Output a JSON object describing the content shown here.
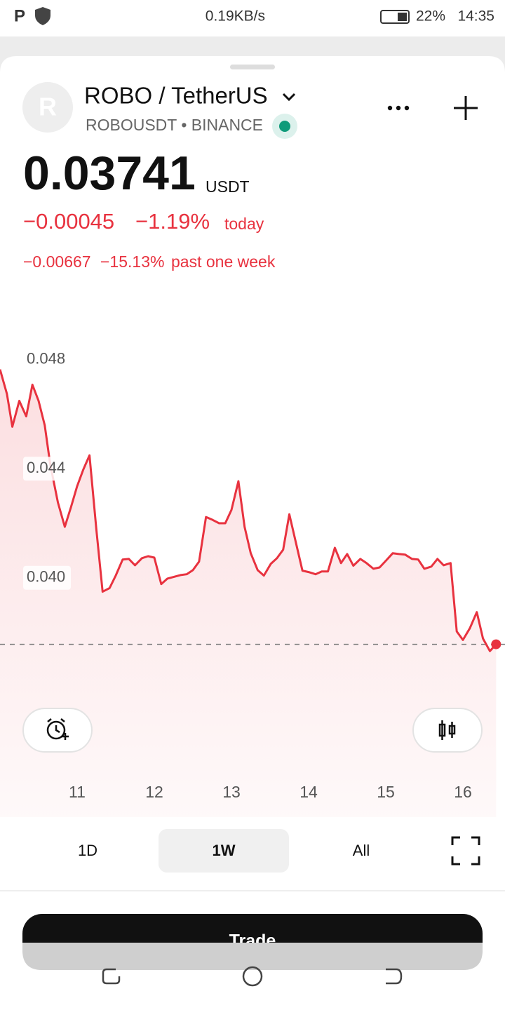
{
  "status_bar": {
    "speed": "0.19KB/s",
    "battery": "22%",
    "time": "14:35"
  },
  "header": {
    "avatar": "R",
    "title": "ROBO / TetherUS",
    "subtitle": "ROBOUSDT • BINANCE"
  },
  "price": {
    "value": "0.03741",
    "unit": "USDT",
    "change": "−0.00045",
    "change_pct": "−1.19%",
    "change_period": "today",
    "week_change": "−0.00667",
    "week_change_pct": "−15.13%",
    "week_period": "past one week"
  },
  "chart_data": {
    "type": "line",
    "color": "#e8323f",
    "grid": false,
    "xlim": [
      10,
      16.5
    ],
    "xticks": [
      11,
      12,
      13,
      14,
      15,
      16
    ],
    "ylim": [
      0.034,
      0.05
    ],
    "yticks": [
      0.048,
      0.044,
      {
        "value": 0.04,
        "label": "0.040"
      }
    ],
    "x": [
      10.0,
      10.09,
      10.16,
      10.25,
      10.34,
      10.42,
      10.5,
      10.58,
      10.65,
      10.75,
      10.84,
      10.92,
      11.0,
      11.08,
      11.16,
      11.25,
      11.33,
      11.42,
      11.5,
      11.59,
      11.67,
      11.75,
      11.84,
      11.92,
      12.0,
      12.09,
      12.17,
      12.25,
      12.34,
      12.42,
      12.5,
      12.58,
      12.67,
      12.75,
      12.84,
      12.92,
      13.0,
      13.09,
      13.17,
      13.25,
      13.34,
      13.42,
      13.51,
      13.59,
      13.67,
      13.75,
      13.84,
      13.92,
      14.0,
      14.09,
      14.17,
      14.25,
      14.34,
      14.42,
      14.5,
      14.58,
      14.67,
      14.75,
      14.84,
      14.92,
      15.0,
      15.09,
      15.17,
      15.25,
      15.34,
      15.42,
      15.5,
      15.59,
      15.67,
      15.75,
      15.84,
      15.92,
      16.0,
      16.09,
      16.18,
      16.26,
      16.35,
      16.43
    ],
    "values": [
      0.04764,
      0.04674,
      0.04554,
      0.04649,
      0.04592,
      0.04708,
      0.04649,
      0.04559,
      0.04418,
      0.04277,
      0.04187,
      0.04259,
      0.04336,
      0.04397,
      0.04449,
      0.04174,
      0.03949,
      0.03962,
      0.04008,
      0.04067,
      0.04069,
      0.04046,
      0.04072,
      0.04079,
      0.04074,
      0.03977,
      0.03997,
      0.04003,
      0.0401,
      0.04013,
      0.04028,
      0.04059,
      0.04223,
      0.04213,
      0.042,
      0.042,
      0.04249,
      0.04354,
      0.04187,
      0.0409,
      0.04028,
      0.04008,
      0.04051,
      0.04072,
      0.04103,
      0.04233,
      0.04123,
      0.04026,
      0.04021,
      0.04013,
      0.04023,
      0.04023,
      0.0411,
      0.04054,
      0.04087,
      0.04044,
      0.04069,
      0.04054,
      0.04033,
      0.04038,
      0.04062,
      0.0409,
      0.04087,
      0.04085,
      0.04069,
      0.04067,
      0.04033,
      0.04041,
      0.04069,
      0.04046,
      0.04054,
      0.03803,
      0.03772,
      0.03815,
      0.03874,
      0.03777,
      0.03731,
      0.03756
    ]
  },
  "tabs": [
    "1D",
    "1W",
    "All"
  ],
  "trade_button": "Trade"
}
